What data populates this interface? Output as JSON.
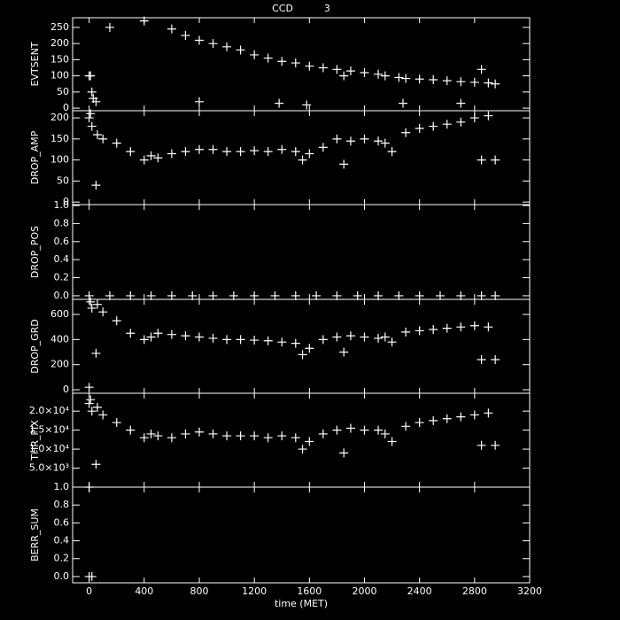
{
  "chart_data": [
    {
      "type": "scatter",
      "title": "CCD          3",
      "ylabel": "EVTSENT",
      "color": "#ffffff",
      "xlim": [
        -120,
        3200
      ],
      "xticks": [
        0,
        400,
        800,
        1200,
        1600,
        2000,
        2400,
        2800,
        3200
      ],
      "ylim": [
        -8,
        280
      ],
      "yticks": [
        0,
        50,
        100,
        150,
        200,
        250
      ],
      "x": [
        0,
        10,
        20,
        30,
        50,
        150,
        400,
        600,
        700,
        800,
        900,
        1000,
        1100,
        1200,
        1300,
        1400,
        1500,
        1600,
        1700,
        1800,
        1850,
        1900,
        2000,
        2100,
        2150,
        2250,
        2300,
        2400,
        2500,
        2600,
        2700,
        2800,
        2850,
        2900,
        2950,
        800,
        1380,
        1580,
        2280,
        2700
      ],
      "values": [
        100,
        100,
        50,
        30,
        20,
        250,
        270,
        245,
        225,
        210,
        200,
        190,
        180,
        165,
        155,
        145,
        140,
        130,
        125,
        120,
        100,
        115,
        110,
        105,
        100,
        95,
        92,
        90,
        88,
        85,
        82,
        80,
        120,
        78,
        75,
        20,
        15,
        10,
        15,
        15
      ]
    },
    {
      "type": "scatter",
      "ylabel": "DROP_AMP",
      "color": "#ffffff",
      "xlim": [
        -120,
        3200
      ],
      "xticks": [
        0,
        400,
        800,
        1200,
        1600,
        2000,
        2400,
        2800,
        3200
      ],
      "ylim": [
        -6,
        217
      ],
      "yticks": [
        0,
        50,
        100,
        150,
        200
      ],
      "x": [
        0,
        10,
        20,
        50,
        60,
        100,
        200,
        300,
        400,
        450,
        500,
        600,
        700,
        800,
        900,
        1000,
        1100,
        1200,
        1300,
        1400,
        1500,
        1550,
        1600,
        1700,
        1800,
        1850,
        1900,
        2000,
        2100,
        2150,
        2200,
        2300,
        2400,
        2500,
        2600,
        2700,
        2800,
        2850,
        2900,
        2950
      ],
      "values": [
        200,
        210,
        180,
        40,
        160,
        150,
        140,
        120,
        100,
        110,
        105,
        115,
        120,
        125,
        125,
        120,
        120,
        122,
        120,
        125,
        120,
        100,
        115,
        130,
        150,
        90,
        145,
        150,
        145,
        140,
        120,
        165,
        175,
        180,
        185,
        190,
        200,
        100,
        205,
        100
      ]
    },
    {
      "type": "scatter",
      "ylabel": "DROP_POS",
      "color": "#ffffff",
      "xlim": [
        -120,
        3200
      ],
      "xticks": [
        0,
        400,
        800,
        1200,
        1600,
        2000,
        2400,
        2800,
        3200
      ],
      "ylim": [
        -0.04,
        1.01
      ],
      "yticks": [
        {
          "value": 0,
          "label": "0.0"
        },
        {
          "value": 0.2,
          "label": "0.2"
        },
        {
          "value": 0.4,
          "label": "0.4"
        },
        {
          "value": 0.6,
          "label": "0.6"
        },
        {
          "value": 0.8,
          "label": "0.8"
        },
        {
          "value": 1,
          "label": "1.0"
        }
      ],
      "x": [
        0,
        150,
        300,
        450,
        600,
        750,
        900,
        1050,
        1200,
        1350,
        1500,
        1650,
        1800,
        1950,
        2100,
        2250,
        2400,
        2550,
        2700,
        2850,
        2950
      ],
      "values": [
        0,
        0,
        0,
        0,
        0,
        0,
        0,
        0,
        0,
        0,
        0,
        0,
        0,
        0,
        0,
        0,
        0,
        0,
        0,
        0,
        0
      ]
    },
    {
      "type": "scatter",
      "ylabel": "DROP_GRD",
      "color": "#ffffff",
      "xlim": [
        -120,
        3200
      ],
      "xticks": [
        0,
        400,
        800,
        1200,
        1600,
        2000,
        2400,
        2800,
        3200
      ],
      "ylim": [
        -28,
        720
      ],
      "yticks": [
        0,
        200,
        400,
        600
      ],
      "x": [
        0,
        10,
        20,
        50,
        60,
        100,
        200,
        300,
        400,
        450,
        500,
        600,
        700,
        800,
        900,
        1000,
        1100,
        1200,
        1300,
        1400,
        1500,
        1550,
        1600,
        1700,
        1800,
        1850,
        1900,
        2000,
        2100,
        2150,
        2200,
        2300,
        2400,
        2500,
        2600,
        2700,
        2800,
        2850,
        2900,
        2950
      ],
      "values": [
        20,
        700,
        650,
        290,
        680,
        620,
        550,
        450,
        400,
        420,
        450,
        440,
        430,
        420,
        410,
        400,
        400,
        395,
        390,
        380,
        370,
        280,
        330,
        400,
        420,
        300,
        430,
        420,
        410,
        420,
        380,
        460,
        470,
        480,
        490,
        500,
        510,
        240,
        500,
        240
      ]
    },
    {
      "type": "scatter",
      "ylabel": "THR_PIX",
      "color": "#ffffff",
      "xlim": [
        -120,
        3200
      ],
      "xticks": [
        0,
        400,
        800,
        1200,
        1600,
        2000,
        2400,
        2800,
        3200
      ],
      "ylim": [
        0,
        24700
      ],
      "yticks": [
        {
          "value": 5000,
          "label": "5.0×10³"
        },
        {
          "value": 10000,
          "label": "1.0×10⁴"
        },
        {
          "value": 15000,
          "label": "1.5×10⁴"
        },
        {
          "value": 20000,
          "label": "2.0×10⁴"
        }
      ],
      "x": [
        0,
        10,
        20,
        50,
        60,
        100,
        200,
        300,
        400,
        450,
        500,
        600,
        700,
        800,
        900,
        1000,
        1100,
        1200,
        1300,
        1400,
        1500,
        1550,
        1600,
        1700,
        1800,
        1850,
        1900,
        2000,
        2100,
        2150,
        2200,
        2300,
        2400,
        2500,
        2600,
        2700,
        2800,
        2850,
        2900,
        2950
      ],
      "values": [
        22000,
        23000,
        20000,
        6000,
        21000,
        19000,
        17000,
        15000,
        13000,
        14000,
        13500,
        13000,
        14000,
        14500,
        14000,
        13500,
        13500,
        13500,
        13000,
        13500,
        13000,
        10000,
        12000,
        14000,
        15000,
        9000,
        15500,
        15000,
        15000,
        14000,
        12000,
        16000,
        17000,
        17500,
        18000,
        18500,
        19000,
        11000,
        19500,
        11000
      ]
    },
    {
      "type": "scatter",
      "ylabel": "BERR_SUM",
      "xlabel": "time (MET)",
      "color": "#ffffff",
      "xlim": [
        -120,
        3200
      ],
      "xticks": [
        0,
        400,
        800,
        1200,
        1600,
        2000,
        2400,
        2800,
        3200
      ],
      "ylim": [
        -0.07,
        1.0
      ],
      "yticks": [
        {
          "value": 0,
          "label": "0.0"
        },
        {
          "value": 0.2,
          "label": "0.2"
        },
        {
          "value": 0.4,
          "label": "0.4"
        },
        {
          "value": 0.6,
          "label": "0.6"
        },
        {
          "value": 0.8,
          "label": "0.8"
        },
        {
          "value": 1,
          "label": "1.0"
        }
      ],
      "x": [
        0,
        20,
        0
      ],
      "values": [
        0,
        0,
        1
      ]
    }
  ]
}
